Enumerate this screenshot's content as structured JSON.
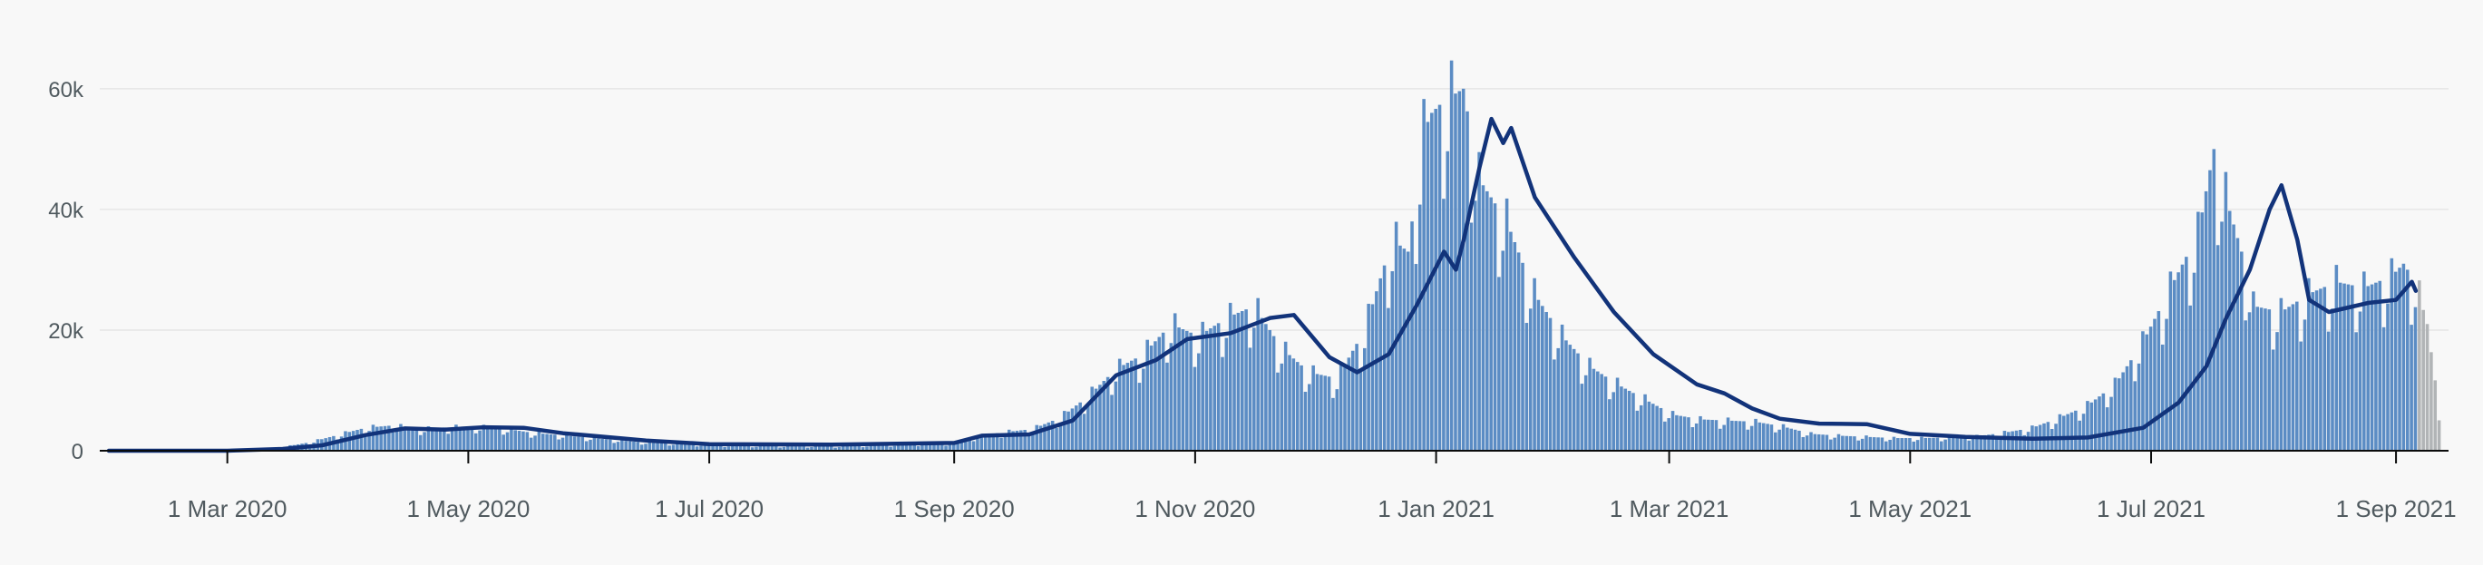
{
  "chart_data": {
    "type": "bar",
    "title": "",
    "xlabel": "",
    "ylabel": "",
    "x_start": "2020-01-31",
    "x_end": "2021-09-12",
    "ylim": [
      0,
      72000
    ],
    "grid": true,
    "y_ticks": [
      {
        "value": 0,
        "label": "0"
      },
      {
        "value": 20000,
        "label": "20k"
      },
      {
        "value": 40000,
        "label": "40k"
      },
      {
        "value": 60000,
        "label": "60k"
      }
    ],
    "x_ticks": [
      {
        "date": "2020-03-01",
        "label": "1 Mar 2020"
      },
      {
        "date": "2020-05-01",
        "label": "1 May 2020"
      },
      {
        "date": "2020-07-01",
        "label": "1 Jul 2020"
      },
      {
        "date": "2020-09-01",
        "label": "1 Sep 2020"
      },
      {
        "date": "2020-11-01",
        "label": "1 Nov 2020"
      },
      {
        "date": "2021-01-01",
        "label": "1 Jan 2021"
      },
      {
        "date": "2021-03-01",
        "label": "1 Mar 2021"
      },
      {
        "date": "2021-05-01",
        "label": "1 May 2021"
      },
      {
        "date": "2021-07-01",
        "label": "1 Jul 2021"
      },
      {
        "date": "2021-09-01",
        "label": "1 Sep 2021"
      }
    ],
    "series": [
      {
        "kind": "daily-bars",
        "color": "#5b8cc4",
        "incomplete_color": "#b1b4b6",
        "points": [
          [
            "2020-01-31",
            0
          ],
          [
            "2020-02-15",
            0
          ],
          [
            "2020-03-01",
            20
          ],
          [
            "2020-03-10",
            150
          ],
          [
            "2020-03-15",
            600
          ],
          [
            "2020-03-22",
            1400
          ],
          [
            "2020-03-29",
            2600
          ],
          [
            "2020-04-05",
            3800
          ],
          [
            "2020-04-12",
            4200
          ],
          [
            "2020-04-19",
            3600
          ],
          [
            "2020-04-26",
            3900
          ],
          [
            "2020-05-03",
            4000
          ],
          [
            "2020-05-10",
            3700
          ],
          [
            "2020-05-17",
            3000
          ],
          [
            "2020-05-31",
            2200
          ],
          [
            "2020-06-14",
            1400
          ],
          [
            "2020-07-01",
            900
          ],
          [
            "2020-07-15",
            750
          ],
          [
            "2020-08-01",
            700
          ],
          [
            "2020-08-15",
            900
          ],
          [
            "2020-09-01",
            1200
          ],
          [
            "2020-09-07",
            2400
          ],
          [
            "2020-09-14",
            3100
          ],
          [
            "2020-09-21",
            3600
          ],
          [
            "2020-09-28",
            5500
          ],
          [
            "2020-10-05",
            9000
          ],
          [
            "2020-10-12",
            13500
          ],
          [
            "2020-10-19",
            16000
          ],
          [
            "2020-10-26",
            21000
          ],
          [
            "2020-11-02",
            19000
          ],
          [
            "2020-11-09",
            22000
          ],
          [
            "2020-11-16",
            24000
          ],
          [
            "2020-11-23",
            17000
          ],
          [
            "2020-11-30",
            13000
          ],
          [
            "2020-12-07",
            12000
          ],
          [
            "2020-12-14",
            20000
          ],
          [
            "2020-12-21",
            35000
          ],
          [
            "2020-12-25",
            33000
          ],
          [
            "2020-12-29",
            53000
          ],
          [
            "2020-12-31",
            56000
          ],
          [
            "2021-01-03",
            58000
          ],
          [
            "2021-01-08",
            60000
          ],
          [
            "2021-01-12",
            45000
          ],
          [
            "2021-01-19",
            38000
          ],
          [
            "2021-01-26",
            26000
          ],
          [
            "2021-02-02",
            19000
          ],
          [
            "2021-02-09",
            14000
          ],
          [
            "2021-02-16",
            11000
          ],
          [
            "2021-02-23",
            8500
          ],
          [
            "2021-03-02",
            6000
          ],
          [
            "2021-03-09",
            5200
          ],
          [
            "2021-03-16",
            5000
          ],
          [
            "2021-03-23",
            4800
          ],
          [
            "2021-03-30",
            4000
          ],
          [
            "2021-04-06",
            2800
          ],
          [
            "2021-04-13",
            2500
          ],
          [
            "2021-04-20",
            2300
          ],
          [
            "2021-04-27",
            2100
          ],
          [
            "2021-05-04",
            2100
          ],
          [
            "2021-05-11",
            2200
          ],
          [
            "2021-05-18",
            2400
          ],
          [
            "2021-05-25",
            3000
          ],
          [
            "2021-06-01",
            3800
          ],
          [
            "2021-06-08",
            5500
          ],
          [
            "2021-06-15",
            7500
          ],
          [
            "2021-06-22",
            11000
          ],
          [
            "2021-06-29",
            18000
          ],
          [
            "2021-07-06",
            27000
          ],
          [
            "2021-07-13",
            36000
          ],
          [
            "2021-07-17",
            50000
          ],
          [
            "2021-07-20",
            42000
          ],
          [
            "2021-07-24",
            33000
          ],
          [
            "2021-07-27",
            24000
          ],
          [
            "2021-08-03",
            23000
          ],
          [
            "2021-08-10",
            26000
          ],
          [
            "2021-08-17",
            28000
          ],
          [
            "2021-08-24",
            27000
          ],
          [
            "2021-08-31",
            29000
          ],
          [
            "2021-09-03",
            31000
          ],
          [
            "2021-09-06",
            28000
          ],
          [
            "2021-09-09",
            21000
          ],
          [
            "2021-09-12",
            7000
          ]
        ],
        "incomplete_from": "2021-09-07"
      },
      {
        "kind": "rolling-average-line",
        "color": "#12337a",
        "points": [
          [
            "2020-01-31",
            0
          ],
          [
            "2020-03-01",
            0
          ],
          [
            "2020-03-15",
            300
          ],
          [
            "2020-03-25",
            900
          ],
          [
            "2020-04-05",
            2600
          ],
          [
            "2020-04-15",
            3700
          ],
          [
            "2020-04-25",
            3500
          ],
          [
            "2020-05-05",
            3900
          ],
          [
            "2020-05-15",
            3800
          ],
          [
            "2020-05-25",
            2900
          ],
          [
            "2020-06-15",
            1700
          ],
          [
            "2020-07-01",
            1100
          ],
          [
            "2020-08-01",
            1000
          ],
          [
            "2020-09-01",
            1300
          ],
          [
            "2020-09-08",
            2500
          ],
          [
            "2020-09-20",
            2700
          ],
          [
            "2020-10-01",
            5000
          ],
          [
            "2020-10-12",
            12500
          ],
          [
            "2020-10-22",
            15000
          ],
          [
            "2020-10-30",
            18500
          ],
          [
            "2020-11-10",
            19500
          ],
          [
            "2020-11-20",
            22000
          ],
          [
            "2020-11-26",
            22500
          ],
          [
            "2020-12-05",
            15500
          ],
          [
            "2020-12-12",
            13000
          ],
          [
            "2020-12-20",
            16000
          ],
          [
            "2020-12-27",
            24000
          ],
          [
            "2021-01-03",
            33000
          ],
          [
            "2021-01-06",
            30000
          ],
          [
            "2021-01-08",
            35000
          ],
          [
            "2021-01-12",
            47000
          ],
          [
            "2021-01-15",
            55000
          ],
          [
            "2021-01-18",
            51000
          ],
          [
            "2021-01-20",
            53500
          ],
          [
            "2021-01-26",
            42000
          ],
          [
            "2021-02-05",
            32000
          ],
          [
            "2021-02-15",
            23000
          ],
          [
            "2021-02-25",
            16000
          ],
          [
            "2021-03-08",
            11000
          ],
          [
            "2021-03-15",
            9500
          ],
          [
            "2021-03-22",
            7000
          ],
          [
            "2021-03-29",
            5300
          ],
          [
            "2021-04-08",
            4500
          ],
          [
            "2021-04-20",
            4400
          ],
          [
            "2021-05-01",
            2800
          ],
          [
            "2021-05-15",
            2300
          ],
          [
            "2021-06-01",
            2000
          ],
          [
            "2021-06-15",
            2200
          ],
          [
            "2021-06-29",
            3800
          ],
          [
            "2021-07-08",
            8000
          ],
          [
            "2021-07-15",
            14000
          ],
          [
            "2021-07-20",
            22000
          ],
          [
            "2021-07-26",
            30000
          ],
          [
            "2021-07-31",
            40000
          ],
          [
            "2021-08-03",
            44000
          ],
          [
            "2021-08-07",
            35000
          ],
          [
            "2021-08-10",
            25000
          ],
          [
            "2021-08-15",
            23000
          ],
          [
            "2021-08-25",
            24500
          ],
          [
            "2021-09-01",
            25000
          ],
          [
            "2021-09-05",
            28000
          ],
          [
            "2021-09-06",
            26500
          ]
        ]
      }
    ]
  }
}
